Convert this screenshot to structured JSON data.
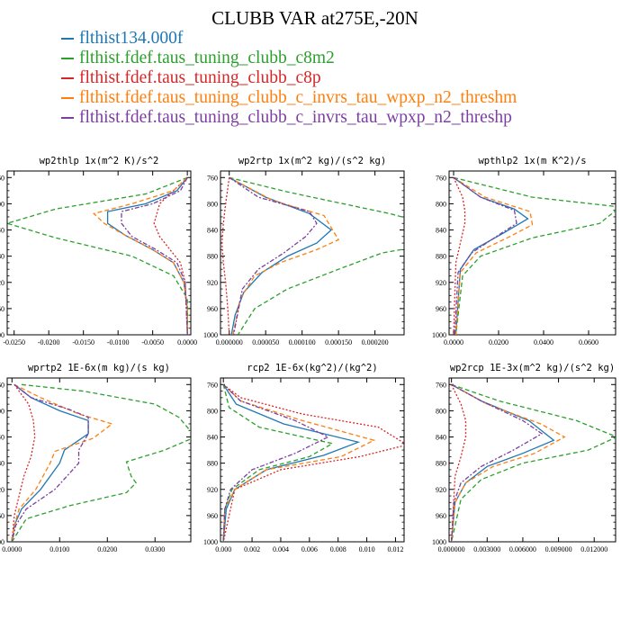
{
  "title": "CLUBB VAR at275E,-20N",
  "legend": [
    {
      "symbol": "—",
      "label": "flthist134.000f",
      "color": "#1f77b4"
    },
    {
      "symbol": "—",
      "label": "flthist.fdef.taus_tuning_clubb_c8m2",
      "color": "#2ca02c"
    },
    {
      "symbol": "—",
      "label": "flthist.fdef.taus_tuning_clubb_c8p",
      "color": "#d62728"
    },
    {
      "symbol": "—",
      "label": "flthist.fdef.taus_tuning_clubb_c_invrs_tau_wpxp_n2_threshm",
      "color": "#ff7f0e"
    },
    {
      "symbol": "—",
      "label": "flthist.fdef.taus_tuning_clubb_c_invrs_tau_wpxp_n2_threshp",
      "color": "#7b3fa0"
    }
  ],
  "chart_data": [
    {
      "type": "line",
      "title": "wp2thlp  1x(m^2 K)/s^2",
      "xlim": [
        -0.026,
        0.0005
      ],
      "ylim": [
        1000,
        750
      ],
      "xticks": [
        -0.025,
        -0.02,
        -0.015,
        -0.01,
        -0.005,
        0
      ],
      "xtick_labels": [
        "-0.0250",
        "-0.0200",
        "-0.0150",
        "-0.0100",
        "-0.0050",
        "0.0000"
      ],
      "yticks": [
        760,
        800,
        840,
        880,
        920,
        960,
        1000
      ],
      "series": [
        {
          "x": [
            0,
            -0.0015,
            -0.006,
            -0.0115,
            -0.0115,
            -0.009,
            -0.005,
            -0.002,
            -0.0005,
            0,
            0
          ],
          "y": [
            760,
            780,
            800,
            812,
            830,
            848,
            870,
            890,
            920,
            960,
            1000
          ]
        },
        {
          "x": [
            0,
            -0.006,
            -0.019,
            -0.026,
            -0.019,
            -0.008,
            -0.002,
            0,
            0
          ],
          "y": [
            760,
            785,
            808,
            830,
            852,
            880,
            910,
            945,
            1000
          ]
        },
        {
          "x": [
            0,
            -0.002,
            -0.004,
            -0.0048,
            -0.004,
            -0.0025,
            -0.001,
            -0.0003,
            0
          ],
          "y": [
            760,
            780,
            800,
            830,
            850,
            870,
            890,
            920,
            1000
          ]
        },
        {
          "x": [
            0,
            -0.002,
            -0.008,
            -0.0135,
            -0.012,
            -0.009,
            -0.005,
            -0.002,
            -0.0005,
            0,
            0
          ],
          "y": [
            760,
            780,
            800,
            815,
            830,
            848,
            870,
            890,
            920,
            960,
            1000
          ]
        },
        {
          "x": [
            0,
            -0.001,
            -0.005,
            -0.0095,
            -0.0095,
            -0.008,
            -0.0045,
            -0.0015,
            -0.0003,
            0
          ],
          "y": [
            760,
            780,
            800,
            812,
            830,
            850,
            870,
            890,
            920,
            1000
          ]
        }
      ]
    },
    {
      "type": "line",
      "title": "wp2rtp  1x(m^2 kg)/(s^2 kg)",
      "xlim": [
        -1.2e-05,
        0.00024
      ],
      "ylim": [
        1000,
        750
      ],
      "xticks": [
        0,
        5e-05,
        0.0001,
        0.00015,
        0.0002
      ],
      "xtick_labels": [
        "0.000000",
        "0.000050",
        "0.000100",
        "0.000150",
        "0.000200"
      ],
      "yticks": [
        760,
        800,
        840,
        880,
        920,
        960,
        1000
      ],
      "series": [
        {
          "x": [
            0,
            5e-05,
            0.00011,
            0.00014,
            0.00012,
            8e-05,
            4.5e-05,
            2e-05,
            8e-06,
            3e-06
          ],
          "y": [
            760,
            790,
            815,
            840,
            860,
            880,
            905,
            935,
            970,
            1000
          ]
        },
        {
          "x": [
            0,
            8e-05,
            0.00022,
            0.00034,
            0.00021,
            0.00015,
            8e-05,
            3.5e-05,
            1.2e-05
          ],
          "y": [
            760,
            782,
            815,
            850,
            875,
            900,
            930,
            960,
            1000
          ]
        },
        {
          "x": [
            0,
            -5e-06,
            -8e-06,
            -1e-05,
            -8e-06,
            -5e-06,
            -2e-06,
            0
          ],
          "y": [
            760,
            800,
            830,
            860,
            890,
            920,
            960,
            1000
          ]
        },
        {
          "x": [
            0,
            6e-05,
            0.00013,
            0.00015,
            0.00012,
            7e-05,
            3.5e-05,
            1.5e-05,
            5e-06
          ],
          "y": [
            760,
            795,
            818,
            855,
            870,
            890,
            910,
            945,
            1000
          ]
        },
        {
          "x": [
            0,
            4e-05,
            0.00011,
            0.00012,
            0.000105,
            7.5e-05,
            4e-05,
            1.8e-05,
            6e-06
          ],
          "y": [
            760,
            790,
            812,
            830,
            850,
            875,
            900,
            930,
            1000
          ]
        }
      ]
    },
    {
      "type": "line",
      "title": "wpthlp2  1x(m K^2)/s",
      "xlim": [
        -0.002,
        0.072
      ],
      "ylim": [
        1000,
        750
      ],
      "xticks": [
        0,
        0.02,
        0.04,
        0.06
      ],
      "xtick_labels": [
        "0.0000",
        "0.0200",
        "0.0400",
        "0.0600"
      ],
      "yticks": [
        760,
        800,
        840,
        880,
        920,
        960,
        1000
      ],
      "series": [
        {
          "x": [
            0,
            0.012,
            0.027,
            0.033,
            0.022,
            0.009,
            0.003,
            0.001
          ],
          "y": [
            760,
            790,
            808,
            823,
            845,
            870,
            900,
            1000
          ]
        },
        {
          "x": [
            0,
            0.035,
            0.074,
            0.065,
            0.035,
            0.012,
            0.004,
            0.001
          ],
          "y": [
            760,
            790,
            805,
            830,
            852,
            880,
            910,
            1000
          ]
        },
        {
          "x": [
            0,
            0.004,
            0.005,
            0.005,
            0.003,
            0.001,
            0
          ],
          "y": [
            760,
            790,
            810,
            830,
            860,
            890,
            1000
          ]
        },
        {
          "x": [
            0,
            0.014,
            0.034,
            0.035,
            0.025,
            0.01,
            0.003,
            0.001
          ],
          "y": [
            760,
            790,
            812,
            832,
            850,
            875,
            905,
            1000
          ]
        },
        {
          "x": [
            0,
            0.012,
            0.027,
            0.028,
            0.019,
            0.008,
            0.002,
            0.0005
          ],
          "y": [
            760,
            790,
            810,
            830,
            850,
            875,
            905,
            1000
          ]
        }
      ]
    },
    {
      "type": "line",
      "title": "wprtp2  1E-6x(m kg)/(s kg)",
      "xlim": [
        -0.001,
        0.0375
      ],
      "ylim": [
        1000,
        750
      ],
      "xticks": [
        0,
        0.01,
        0.02,
        0.03
      ],
      "xtick_labels": [
        "0.0000",
        "0.0100",
        "0.0200",
        "0.0300"
      ],
      "yticks": [
        760,
        800,
        840,
        880,
        920,
        960,
        1000
      ],
      "series": [
        {
          "x": [
            0.0005,
            0.004,
            0.01,
            0.016,
            0.016,
            0.011,
            0.01,
            0.006,
            0.002,
            0.0005,
            0
          ],
          "y": [
            760,
            780,
            800,
            815,
            835,
            860,
            880,
            920,
            950,
            975,
            1000
          ]
        },
        {
          "x": [
            0.002,
            0.015,
            0.03,
            0.035,
            0.0385,
            0.032,
            0.024,
            0.025,
            0.026,
            0.024,
            0.012,
            0.003,
            0
          ],
          "y": [
            760,
            770,
            790,
            810,
            840,
            860,
            878,
            900,
            910,
            925,
            945,
            965,
            1000
          ]
        },
        {
          "x": [
            0.0005,
            0.0035,
            0.0045,
            0.0048,
            0.004,
            0.0025,
            0.0015,
            0.0005,
            0
          ],
          "y": [
            760,
            790,
            815,
            840,
            870,
            900,
            930,
            960,
            1000
          ]
        },
        {
          "x": [
            0.0005,
            0.006,
            0.014,
            0.021,
            0.017,
            0.009,
            0.008,
            0.005,
            0.0015,
            0.0005,
            0
          ],
          "y": [
            760,
            780,
            805,
            820,
            842,
            862,
            880,
            920,
            950,
            975,
            1000
          ]
        },
        {
          "x": [
            0.0005,
            0.004,
            0.012,
            0.016,
            0.016,
            0.014,
            0.014,
            0.009,
            0.003,
            0.0008,
            0
          ],
          "y": [
            760,
            780,
            798,
            810,
            835,
            860,
            880,
            920,
            950,
            975,
            1000
          ]
        }
      ]
    },
    {
      "type": "line",
      "title": "rcp2  1E-6x(kg^2)/(kg^2)",
      "xlim": [
        -0.0002,
        0.0126
      ],
      "ylim": [
        1000,
        750
      ],
      "xticks": [
        0,
        0.002,
        0.004,
        0.006,
        0.008,
        0.01,
        0.012
      ],
      "xtick_labels": [
        "0.000",
        "0.002",
        "0.004",
        "0.006",
        "0.008",
        "0.010",
        "0.012"
      ],
      "yticks": [
        760,
        800,
        840,
        880,
        920,
        960,
        1000
      ],
      "series": [
        {
          "x": [
            0,
            0.0009,
            0.0042,
            0.0094,
            0.007,
            0.003,
            0.0008,
            0.0002,
            0
          ],
          "y": [
            760,
            790,
            820,
            848,
            868,
            890,
            920,
            950,
            1000
          ]
        },
        {
          "x": [
            0,
            0.0004,
            0.0025,
            0.0076,
            0.006,
            0.0025,
            0.0006,
            0.0001,
            0
          ],
          "y": [
            760,
            795,
            825,
            850,
            870,
            890,
            920,
            950,
            1000
          ]
        },
        {
          "x": [
            0,
            0.0012,
            0.0055,
            0.0108,
            0.0128,
            0.0095,
            0.004,
            0.0008,
            0
          ],
          "y": [
            760,
            780,
            805,
            825,
            852,
            870,
            890,
            920,
            1000
          ]
        },
        {
          "x": [
            0,
            0.0012,
            0.0055,
            0.0105,
            0.0082,
            0.003,
            0.0008,
            0.0001,
            0
          ],
          "y": [
            760,
            785,
            815,
            845,
            870,
            890,
            920,
            950,
            1000
          ]
        },
        {
          "x": [
            0,
            0.0012,
            0.005,
            0.0073,
            0.005,
            0.002,
            0.0005,
            0.0001,
            0
          ],
          "y": [
            760,
            785,
            815,
            840,
            865,
            890,
            920,
            950,
            1000
          ]
        }
      ]
    },
    {
      "type": "line",
      "title": "wp2rcp  1E-3x(m^2 kg)/(s^2 kg)",
      "xlim": [
        -0.0002,
        0.0138
      ],
      "ylim": [
        1000,
        750
      ],
      "xticks": [
        0,
        0.003,
        0.006,
        0.009,
        0.012
      ],
      "xtick_labels": [
        "0.000000",
        "0.003000",
        "0.006000",
        "0.009000",
        "0.012000"
      ],
      "yticks": [
        760,
        800,
        840,
        880,
        920,
        960,
        1000
      ],
      "series": [
        {
          "x": [
            0,
            0.0025,
            0.0065,
            0.0086,
            0.006,
            0.003,
            0.0012,
            0.0003,
            0
          ],
          "y": [
            760,
            785,
            815,
            845,
            865,
            885,
            910,
            940,
            1000
          ]
        },
        {
          "x": [
            0,
            0.004,
            0.0105,
            0.0139,
            0.0115,
            0.006,
            0.0025,
            0.0008,
            0
          ],
          "y": [
            760,
            785,
            815,
            840,
            860,
            880,
            905,
            935,
            1000
          ]
        },
        {
          "x": [
            0,
            0.0008,
            0.0012,
            0.0012,
            0.0008,
            0.0003,
            0
          ],
          "y": [
            760,
            790,
            815,
            840,
            870,
            900,
            1000
          ]
        },
        {
          "x": [
            0,
            0.003,
            0.0075,
            0.0095,
            0.007,
            0.0035,
            0.0012,
            0.0003,
            0
          ],
          "y": [
            760,
            790,
            820,
            840,
            865,
            885,
            910,
            940,
            1000
          ]
        },
        {
          "x": [
            0,
            0.0025,
            0.006,
            0.0076,
            0.0052,
            0.0025,
            0.0008,
            0.0002,
            0
          ],
          "y": [
            760,
            785,
            815,
            835,
            860,
            885,
            910,
            940,
            1000
          ]
        }
      ]
    }
  ]
}
